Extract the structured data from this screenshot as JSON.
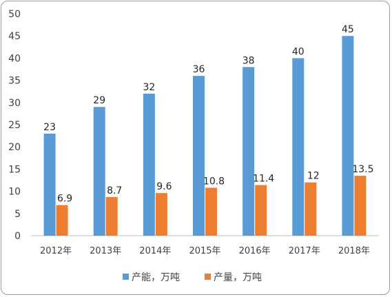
{
  "chart_data": {
    "type": "bar",
    "categories": [
      "2012年",
      "2013年",
      "2014年",
      "2015年",
      "2016年",
      "2017年",
      "2018年"
    ],
    "series": [
      {
        "name": "产能，万吨",
        "color": "#5B9BD5",
        "values": [
          23,
          29,
          32,
          36,
          38,
          40,
          45
        ],
        "labels": [
          "23",
          "29",
          "32",
          "36",
          "38",
          "40",
          "45"
        ]
      },
      {
        "name": "产量，万吨",
        "color": "#ED7D31",
        "values": [
          6.9,
          8.7,
          9.6,
          10.8,
          11.4,
          12,
          13.5
        ],
        "labels": [
          "6.9",
          "8.7",
          "9.6",
          "10.8",
          "11.4",
          "12",
          "13.5"
        ]
      }
    ],
    "ylim": [
      0,
      50
    ],
    "yticks": [
      "0",
      "5",
      "10",
      "15",
      "20",
      "25",
      "30",
      "35",
      "40",
      "45",
      "50"
    ],
    "grid": false,
    "legend_position": "bottom"
  }
}
